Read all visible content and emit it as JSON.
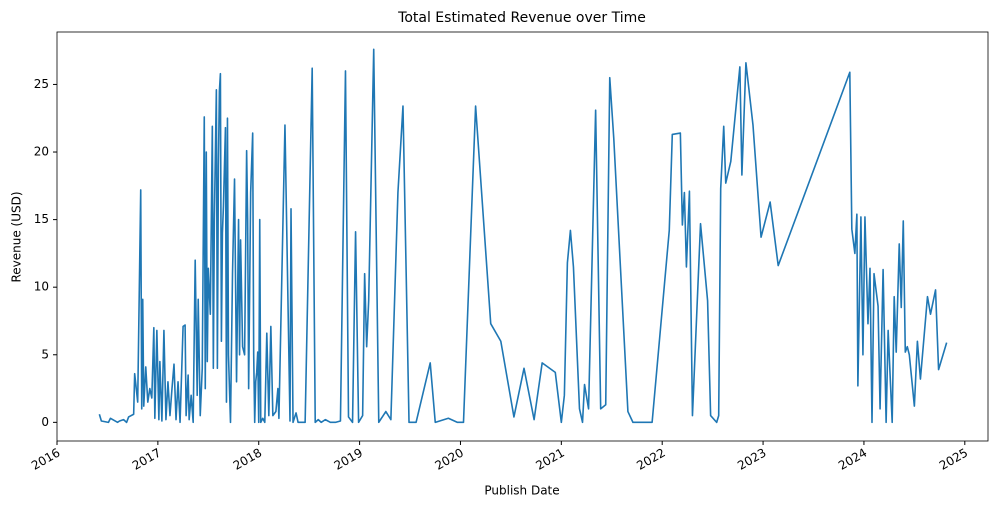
{
  "chart_data": {
    "type": "line",
    "title": "Total Estimated Revenue over Time",
    "xlabel": "Publish Date",
    "ylabel": "Revenue (USD)",
    "color": "#1f77b4",
    "xlim": [
      2016.0,
      2025.23
    ],
    "ylim": [
      -1.38,
      28.88
    ],
    "xticks": [
      2016,
      2017,
      2018,
      2019,
      2020,
      2021,
      2022,
      2023,
      2024,
      2025
    ],
    "yticks": [
      0,
      5,
      10,
      15,
      20,
      25
    ],
    "grid": false,
    "x": [
      2016.42,
      2016.44,
      2016.51,
      2016.53,
      2016.6,
      2016.62,
      2016.66,
      2016.69,
      2016.71,
      2016.76,
      2016.77,
      2016.8,
      2016.83,
      2016.84,
      2016.85,
      2016.86,
      2016.88,
      2016.9,
      2016.92,
      2016.94,
      2016.96,
      2016.97,
      2016.99,
      2017.01,
      2017.02,
      2017.04,
      2017.06,
      2017.08,
      2017.1,
      2017.12,
      2017.14,
      2017.16,
      2017.18,
      2017.2,
      2017.22,
      2017.25,
      2017.27,
      2017.28,
      2017.3,
      2017.31,
      2017.33,
      2017.35,
      2017.37,
      2017.39,
      2017.4,
      2017.42,
      2017.44,
      2017.46,
      2017.47,
      2017.48,
      2017.49,
      2017.5,
      2017.52,
      2017.54,
      2017.55,
      2017.56,
      2017.58,
      2017.59,
      2017.6,
      2017.61,
      2017.62,
      2017.63,
      2017.64,
      2017.65,
      2017.67,
      2017.68,
      2017.69,
      2017.7,
      2017.72,
      2017.74,
      2017.76,
      2017.78,
      2017.8,
      2017.81,
      2017.82,
      2017.84,
      2017.86,
      2017.88,
      2017.89,
      2017.9,
      2017.92,
      2017.94,
      2017.95,
      2017.96,
      2017.97,
      2017.98,
      2017.99,
      2018.0,
      2018.01,
      2018.02,
      2018.04,
      2018.06,
      2018.08,
      2018.1,
      2018.12,
      2018.14,
      2018.17,
      2018.19,
      2018.2,
      2018.26,
      2018.31,
      2018.32,
      2018.34,
      2018.37,
      2018.39,
      2018.46,
      2018.53,
      2018.56,
      2018.59,
      2018.62,
      2018.66,
      2018.71,
      2018.76,
      2018.81,
      2018.86,
      2018.89,
      2018.93,
      2018.96,
      2018.99,
      2019.03,
      2019.05,
      2019.07,
      2019.09,
      2019.14,
      2019.19,
      2019.26,
      2019.31,
      2019.38,
      2019.43,
      2019.49,
      2019.56,
      2019.7,
      2019.75,
      2019.88,
      2019.97,
      2020.03,
      2020.15,
      2020.3,
      2020.4,
      2020.53,
      2020.63,
      2020.73,
      2020.81,
      2020.94,
      2021.0,
      2021.03,
      2021.06,
      2021.09,
      2021.12,
      2021.18,
      2021.21,
      2021.23,
      2021.27,
      2021.34,
      2021.39,
      2021.44,
      2021.48,
      2021.52,
      2021.66,
      2021.71,
      2021.9,
      2022.07,
      2022.1,
      2022.18,
      2022.2,
      2022.22,
      2022.24,
      2022.27,
      2022.3,
      2022.38,
      2022.45,
      2022.48,
      2022.54,
      2022.56,
      2022.58,
      2022.61,
      2022.63,
      2022.68,
      2022.77,
      2022.79,
      2022.83,
      2022.9,
      2022.98,
      2023.07,
      2023.15,
      2023.86,
      2023.88,
      2023.91,
      2023.93,
      2023.94,
      2023.97,
      2023.99,
      2024.01,
      2024.04,
      2024.06,
      2024.08,
      2024.1,
      2024.14,
      2024.16,
      2024.19,
      2024.22,
      2024.24,
      2024.28,
      2024.3,
      2024.32,
      2024.35,
      2024.37,
      2024.39,
      2024.41,
      2024.43,
      2024.45,
      2024.5,
      2024.53,
      2024.56,
      2024.63,
      2024.66,
      2024.71,
      2024.74,
      2024.82
    ],
    "values": [
      0.6,
      0.1,
      0,
      0.3,
      0,
      0.1,
      0.2,
      0,
      0.4,
      0.6,
      3.6,
      1.5,
      17.2,
      1,
      9.1,
      1.2,
      4.1,
      1.5,
      2.5,
      1.8,
      7,
      0.3,
      6.8,
      0.2,
      4.5,
      0.1,
      6.8,
      0.2,
      3,
      0.5,
      2.5,
      4.3,
      0.2,
      3,
      0,
      7.1,
      7.2,
      0.5,
      3.5,
      0.2,
      2,
      0,
      12,
      2,
      9.1,
      0.5,
      4,
      22.6,
      2.5,
      20,
      4.5,
      11.4,
      8,
      21.9,
      4,
      15,
      24.6,
      4,
      19,
      24.5,
      25.8,
      6,
      14,
      16,
      21.8,
      1.5,
      22.5,
      5,
      0,
      11,
      18,
      3,
      15,
      5,
      13.5,
      5.6,
      5,
      20.1,
      15,
      2.5,
      17,
      21.4,
      5,
      0,
      3,
      3.7,
      5.2,
      0,
      15,
      0,
      0.3,
      0,
      6.6,
      0.5,
      7.1,
      0.5,
      0.8,
      2.5,
      0.3,
      22,
      0.1,
      15.8,
      0,
      0.7,
      0,
      0,
      26.2,
      0,
      0.2,
      0,
      0.2,
      0,
      0,
      0.1,
      26,
      0.4,
      0,
      14.1,
      0,
      0.5,
      11,
      5.6,
      9,
      27.6,
      0,
      0.8,
      0.2,
      17,
      23.4,
      0,
      0,
      4.4,
      0,
      0.3,
      0,
      0,
      23.4,
      7.3,
      6,
      0.4,
      4,
      0.2,
      4.4,
      3.7,
      0,
      2,
      11.8,
      14.2,
      11.5,
      1,
      0,
      2.8,
      1,
      23.1,
      1,
      1.3,
      25.5,
      21,
      0.8,
      0,
      0,
      14.2,
      21.3,
      21.4,
      14.6,
      17,
      11.5,
      17.1,
      0.5,
      14.7,
      9,
      0.5,
      0,
      0.5,
      17.3,
      21.9,
      17.7,
      19.3,
      26.3,
      18.3,
      26.6,
      22,
      13.7,
      16.3,
      11.6,
      25.9,
      14.3,
      12.5,
      15.4,
      2.7,
      15.2,
      5,
      15.2,
      7.3,
      11.4,
      0,
      11,
      8.6,
      1,
      11.3,
      0,
      6.8,
      0,
      9.3,
      5.2,
      13.2,
      8.5,
      14.9,
      5.2,
      5.6,
      5,
      1.2,
      6,
      3.2,
      9.3,
      8,
      9.8,
      3.9,
      5.9
    ]
  }
}
